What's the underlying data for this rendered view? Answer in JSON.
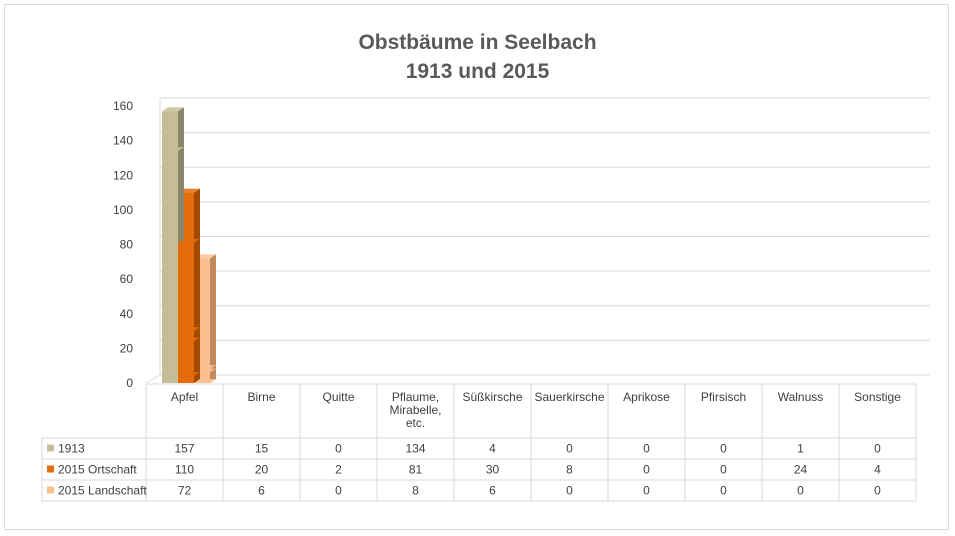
{
  "chart_data": {
    "type": "bar",
    "title_lines": [
      "Obstbäume in Seelbach",
      "1913 und 2015"
    ],
    "categories": [
      "Apfel",
      "Birne",
      "Quitte",
      "Pflaume, Mirabelle, etc.",
      "Süßkirsche",
      "Sauerkirsche",
      "Aprikose",
      "Pfirsisch",
      "Walnuss",
      "Sonstige"
    ],
    "category_lines": [
      [
        "Apfel"
      ],
      [
        "Birne"
      ],
      [
        "Quitte"
      ],
      [
        "Pflaume,",
        "Mirabelle,",
        "etc."
      ],
      [
        "Süßkirsche"
      ],
      [
        "Sauerkirsche"
      ],
      [
        "Aprikose"
      ],
      [
        "Pfirsisch"
      ],
      [
        "Walnuss"
      ],
      [
        "Sonstige"
      ]
    ],
    "series": [
      {
        "name": "1913",
        "color": "#c4bd97",
        "side_color": "#8b8569",
        "values": [
          157,
          15,
          0,
          134,
          4,
          0,
          0,
          0,
          1,
          0
        ]
      },
      {
        "name": "2015 Ortschaft",
        "color": "#e46c0a",
        "side_color": "#a34a05",
        "values": [
          110,
          20,
          2,
          81,
          30,
          8,
          0,
          0,
          24,
          4
        ]
      },
      {
        "name": "2015 Landschaft",
        "color": "#fac090",
        "side_color": "#c08a60",
        "values": [
          72,
          6,
          0,
          8,
          6,
          0,
          0,
          0,
          0,
          0
        ]
      }
    ],
    "ylim": [
      0,
      160
    ],
    "yticks": [
      0,
      20,
      40,
      60,
      80,
      100,
      120,
      140,
      160
    ],
    "grid": true,
    "legend": "data-table",
    "xlabel": "",
    "ylabel": ""
  }
}
